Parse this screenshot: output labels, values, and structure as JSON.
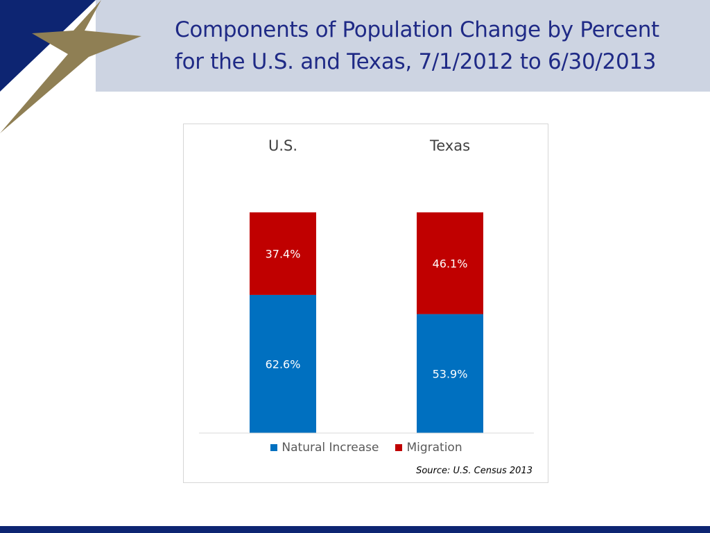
{
  "slide": {
    "title_line1": "Components of Population Change by Percent",
    "title_line2": "for the U.S. and Texas, 7/1/2012 to 6/30/2013",
    "source": "Source: U.S. Census 2013"
  },
  "colors": {
    "header_band": "#cdd4e2",
    "navy": "#0d2572",
    "gold": "#8f7f54",
    "title_text": "#1f2a86",
    "natural_increase": "#0070c0",
    "migration": "#c00000"
  },
  "chart_data": {
    "type": "bar",
    "stacked": true,
    "categories": [
      "U.S.",
      "Texas"
    ],
    "series": [
      {
        "name": "Natural Increase",
        "values": [
          62.6,
          53.9
        ],
        "labels": [
          "62.6%",
          "53.9%"
        ],
        "color": "#0070c0"
      },
      {
        "name": "Migration",
        "values": [
          37.4,
          46.1
        ],
        "labels": [
          "37.4%",
          "46.1%"
        ],
        "color": "#c00000"
      }
    ],
    "ylim": [
      0,
      100
    ],
    "grid": false,
    "legend": "bottom",
    "category_labels_position": "top"
  }
}
